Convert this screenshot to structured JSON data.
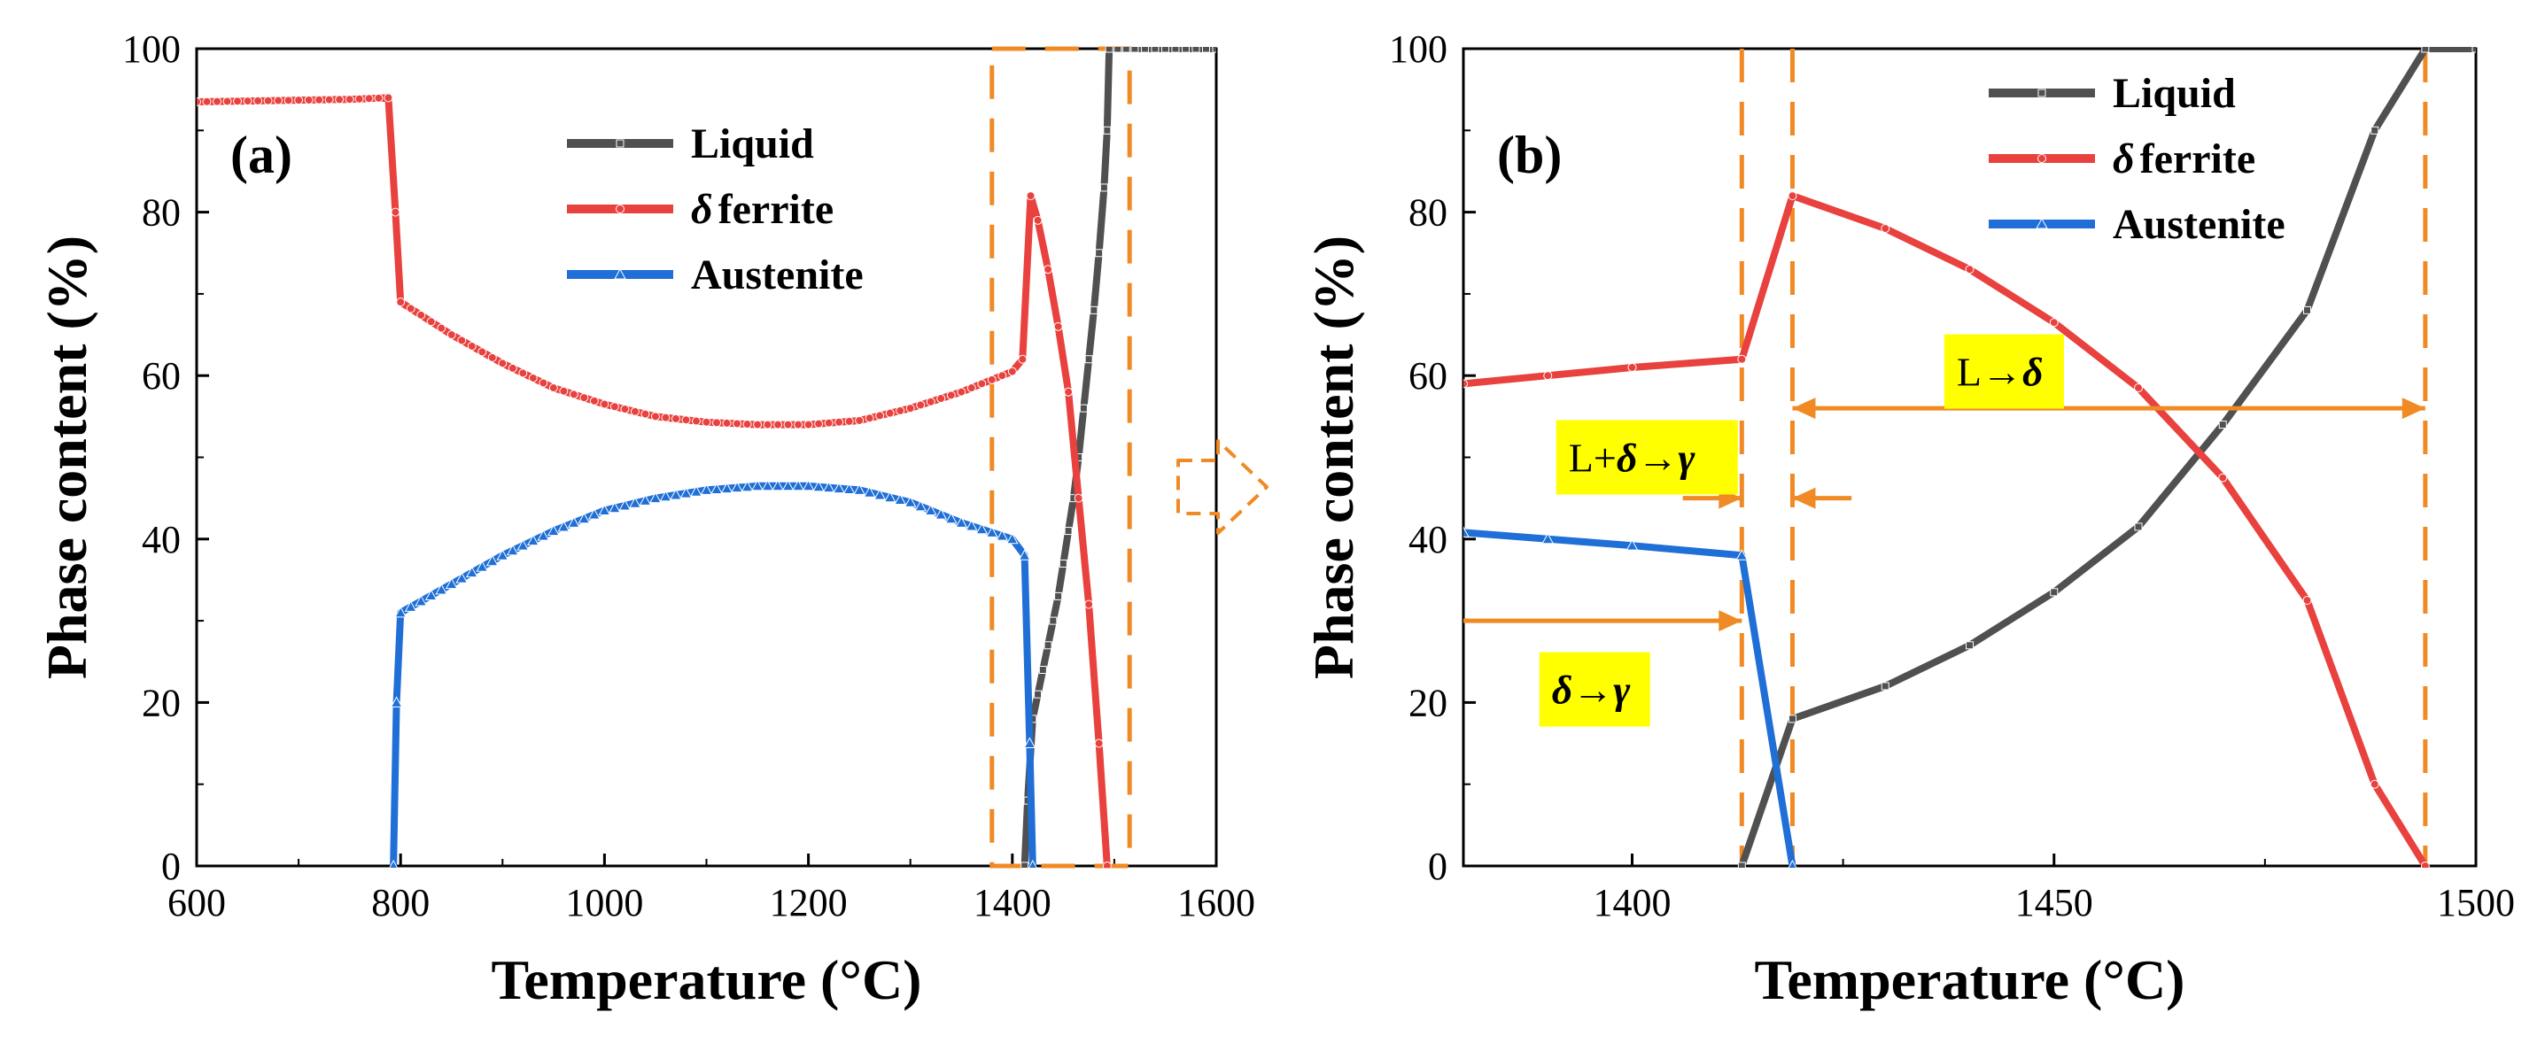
{
  "chart_data": [
    {
      "type": "line",
      "panel_label": "(a)",
      "xlabel": "Temperature (°C)",
      "ylabel": "Phase content (%)",
      "xlim": [
        600,
        1600
      ],
      "ylim": [
        0,
        100
      ],
      "xticks": [
        600,
        800,
        1000,
        1200,
        1400,
        1600
      ],
      "yticks": [
        0,
        20,
        40,
        60,
        80,
        100
      ],
      "legend_position": "top-center",
      "series": [
        {
          "name": "Liquid",
          "legend_label": "Liquid",
          "color": "#505050",
          "marker": "square",
          "x": [
            1412,
            1415,
            1420,
            1425,
            1430,
            1435,
            1440,
            1445,
            1450,
            1455,
            1460,
            1465,
            1470,
            1475,
            1480,
            1485,
            1490,
            1493,
            1495,
            1520,
            1560,
            1600
          ],
          "y": [
            0,
            8,
            18,
            21,
            24,
            27,
            30,
            33,
            37,
            41,
            45,
            50,
            56,
            62,
            68,
            75,
            83,
            90,
            100,
            100,
            100,
            100
          ]
        },
        {
          "name": "delta-ferrite",
          "legend_prefix": "δ",
          "legend_label": "ferrite",
          "color": "#e8413e",
          "marker": "circle",
          "x": [
            600,
            650,
            700,
            750,
            788,
            795,
            800,
            850,
            900,
            950,
            1000,
            1050,
            1100,
            1150,
            1200,
            1250,
            1300,
            1350,
            1400,
            1410,
            1418,
            1425,
            1435,
            1445,
            1455,
            1465,
            1475,
            1485,
            1493
          ],
          "y": [
            93.5,
            93.6,
            93.7,
            93.8,
            94,
            80,
            69,
            65,
            61.5,
            58.5,
            56.5,
            55,
            54.3,
            54,
            54,
            54.5,
            56,
            58,
            60.5,
            62,
            82,
            79,
            73,
            66,
            58,
            45,
            32,
            15,
            0
          ]
        },
        {
          "name": "Austenite",
          "legend_label": "Austenite",
          "color": "#1f6fd6",
          "marker": "triangle",
          "x": [
            793,
            796,
            800,
            850,
            900,
            950,
            1000,
            1050,
            1100,
            1150,
            1200,
            1250,
            1300,
            1350,
            1400,
            1412,
            1417,
            1420
          ],
          "y": [
            0,
            20,
            31,
            34.5,
            38,
            41,
            43.5,
            45,
            46,
            46.5,
            46.5,
            46,
            44.5,
            42,
            40,
            38,
            15,
            0
          ]
        }
      ],
      "highlight_box": {
        "x": [
          1380,
          1515
        ],
        "y": [
          0,
          100
        ],
        "color": "#f08a24"
      }
    },
    {
      "type": "line",
      "panel_label": "(b)",
      "xlabel": "Temperature (°C)",
      "ylabel": "Phase content (%)",
      "xlim": [
        1380,
        1500
      ],
      "ylim": [
        0,
        100
      ],
      "xticks": [
        1400,
        1450,
        1500
      ],
      "yticks": [
        0,
        20,
        40,
        60,
        80,
        100
      ],
      "legend_position": "top-right",
      "series": [
        {
          "name": "Liquid",
          "legend_label": "Liquid",
          "color": "#505050",
          "marker": "square",
          "x": [
            1413,
            1419,
            1430,
            1440,
            1450,
            1460,
            1470,
            1480,
            1488,
            1494,
            1500
          ],
          "y": [
            0,
            18,
            22,
            27,
            33.5,
            41.5,
            54,
            68,
            90,
            100,
            100
          ]
        },
        {
          "name": "delta-ferrite",
          "legend_prefix": "δ",
          "legend_label": "ferrite",
          "color": "#e8413e",
          "marker": "circle",
          "x": [
            1380,
            1390,
            1400,
            1413,
            1419,
            1430,
            1440,
            1450,
            1460,
            1470,
            1480,
            1488,
            1494
          ],
          "y": [
            59,
            60,
            61,
            62,
            82,
            78,
            73,
            66.5,
            58.5,
            47.5,
            32.5,
            10,
            0
          ]
        },
        {
          "name": "Austenite",
          "legend_label": "Austenite",
          "color": "#1f6fd6",
          "marker": "triangle",
          "x": [
            1380,
            1390,
            1400,
            1413,
            1419
          ],
          "y": [
            40.8,
            40,
            39.2,
            38,
            0
          ]
        }
      ],
      "vlines": [
        1413,
        1419,
        1494
      ],
      "annotations": [
        {
          "id": "l-to-delta",
          "text": "L→",
          "symbol": "δ",
          "anchor_x": 1437,
          "anchor_y": 60.5
        },
        {
          "id": "l-plus-delta-to-gamma",
          "text": "L+",
          "symbol": "δ→γ",
          "anchor_x": 1391,
          "anchor_y": 50
        },
        {
          "id": "delta-to-gamma",
          "text": "",
          "symbol": "δ→γ",
          "anchor_x": 1389,
          "anchor_y": 21.6
        }
      ],
      "arrows": [
        {
          "id": "l-delta-range",
          "from": 1419,
          "to": 1494,
          "y": 56
        },
        {
          "id": "gap-left-arrow",
          "from": 1406,
          "to": 1413,
          "y": 45,
          "arrow_at": "end"
        },
        {
          "id": "gap-right-arrow",
          "from": 1426,
          "to": 1419,
          "y": 45,
          "arrow_at": "end"
        },
        {
          "id": "delta-gamma-range",
          "from": 1380,
          "to": 1413,
          "y": 30,
          "arrow_at": "end"
        }
      ],
      "arrow_color": "#f08a24",
      "annotation_bg": "#ffff00"
    }
  ],
  "transition_arrow": {
    "color": "#f08a24",
    "direction": "right"
  }
}
